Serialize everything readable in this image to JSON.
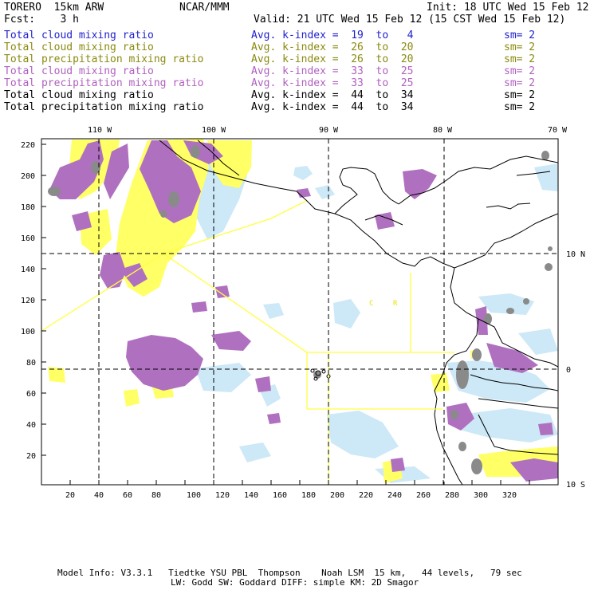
{
  "header": {
    "model": "TORERO  15km ARW",
    "org": "NCAR/MMM",
    "init": "Init: 18 UTC Wed 15 Feb 12",
    "fcst": "Fcst:    3 h",
    "valid": "Valid: 21 UTC Wed 15 Feb 12 (15 CST Wed 15 Feb 12)"
  },
  "fields": [
    {
      "name": "Total cloud mixing ratio",
      "index": "Avg. k-index =  19  to   4",
      "sm": "sm= 2",
      "color": "#1f1fcf"
    },
    {
      "name": "Total cloud mixing ratio",
      "index": "Avg. k-index =  26  to  20",
      "sm": "sm= 2",
      "color": "#8a8a10"
    },
    {
      "name": "Total precipitation mixing ratio",
      "index": "Avg. k-index =  26  to  20",
      "sm": "sm= 2",
      "color": "#8a8a10"
    },
    {
      "name": "Total cloud mixing ratio",
      "index": "Avg. k-index =  33  to  25",
      "sm": "sm= 2",
      "color": "#b060c0"
    },
    {
      "name": "Total precipitation mixing ratio",
      "index": "Avg. k-index =  33  to  25",
      "sm": "sm= 2",
      "color": "#b060c0"
    },
    {
      "name": "Total cloud mixing ratio",
      "index": "Avg. k-index =  44  to  34",
      "sm": "sm= 2",
      "color": "#000000"
    },
    {
      "name": "Total precipitation mixing ratio",
      "index": "Avg. k-index =  44  to  34",
      "sm": "sm= 2",
      "color": "#000000"
    }
  ],
  "map": {
    "lon_labels": [
      "110 W",
      "100 W",
      "90 W",
      "80 W",
      "70 W"
    ],
    "lat_labels": [
      "10 N",
      "0",
      "10 S"
    ],
    "y_ticks": [
      "220",
      "200",
      "180",
      "160",
      "140",
      "120",
      "100",
      "80",
      "60",
      "40",
      "20"
    ],
    "x_ticks": [
      "20",
      "40",
      "60",
      "80",
      "100",
      "120",
      "140",
      "160",
      "180",
      "200",
      "220",
      "240",
      "260",
      "280",
      "300",
      "320"
    ],
    "region_labels": [
      "C",
      "R"
    ],
    "colors": {
      "land": "#000000",
      "domain_lines": "#ffff40",
      "light_blue": "#cde8f6",
      "yellow": "#ffff66",
      "purple": "#b070c0",
      "gray": "#8a8a8a"
    }
  },
  "footer": {
    "line1": "Model Info: V3.3.1   Tiedtke YSU PBL  Thompson    Noah LSM  15 km,   44 levels,   79 sec",
    "line2": "LW: Godd SW: Goddard DIFF: simple KM: 2D Smagor"
  }
}
